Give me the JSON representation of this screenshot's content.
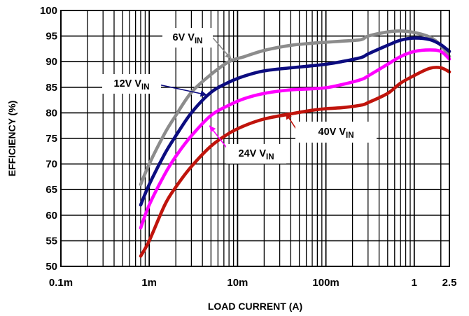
{
  "chart_data": {
    "type": "line",
    "title": "",
    "xlabel": "LOAD CURRENT (A)",
    "ylabel": "EFFICIENCY (%)",
    "xscale": "log",
    "xlim": [
      0.0001,
      2.5
    ],
    "ylim": [
      50,
      100
    ],
    "grid": true,
    "x_ticks": [
      {
        "value": 0.0001,
        "label": "0.1m"
      },
      {
        "value": 0.001,
        "label": "1m"
      },
      {
        "value": 0.01,
        "label": "10m"
      },
      {
        "value": 0.1,
        "label": "100m"
      },
      {
        "value": 1,
        "label": "1"
      },
      {
        "value": 2.5,
        "label": "2.5"
      }
    ],
    "y_ticks": [
      50,
      55,
      60,
      65,
      70,
      75,
      80,
      85,
      90,
      95,
      100
    ],
    "series": [
      {
        "name": "6V",
        "name_sub": "IN",
        "color": "#8c8c8c",
        "x": [
          0.0008,
          0.001,
          0.0015,
          0.002,
          0.003,
          0.005,
          0.008,
          0.012,
          0.02,
          0.04,
          0.07,
          0.1,
          0.15,
          0.25,
          0.3,
          0.5,
          0.7,
          1.0,
          1.5,
          2.0,
          2.5
        ],
        "y": [
          66,
          70,
          76,
          79.5,
          84,
          87.5,
          90,
          91,
          92.2,
          93.2,
          93.6,
          93.8,
          94,
          94.3,
          95,
          95.8,
          96,
          95.7,
          94.8,
          93.2,
          91
        ]
      },
      {
        "name": "12V",
        "name_sub": "IN",
        "color": "#0c0c80",
        "x": [
          0.0008,
          0.001,
          0.0015,
          0.002,
          0.003,
          0.005,
          0.008,
          0.012,
          0.02,
          0.04,
          0.07,
          0.1,
          0.15,
          0.25,
          0.3,
          0.5,
          0.7,
          1.0,
          1.5,
          2.0,
          2.5
        ],
        "y": [
          62,
          66,
          72,
          75.5,
          80,
          84,
          86,
          87.2,
          88.2,
          88.8,
          89.2,
          89.5,
          90,
          90.8,
          91.5,
          93.2,
          94.2,
          94.6,
          94.3,
          93.3,
          92
        ]
      },
      {
        "name": "24V",
        "name_sub": "IN",
        "color": "#ff00ff",
        "x": [
          0.0008,
          0.001,
          0.0015,
          0.002,
          0.003,
          0.005,
          0.008,
          0.012,
          0.02,
          0.04,
          0.07,
          0.1,
          0.15,
          0.25,
          0.3,
          0.5,
          0.7,
          1.0,
          1.5,
          2.0,
          2.5
        ],
        "y": [
          57.5,
          62,
          68,
          71.5,
          75.5,
          79.5,
          81.5,
          82.8,
          83.8,
          84.5,
          84.7,
          84.9,
          85.5,
          86.5,
          87.2,
          89.5,
          91,
          92,
          92.3,
          92,
          90.5
        ]
      },
      {
        "name": "40V",
        "name_sub": "IN",
        "color": "#c0140c",
        "x": [
          0.0008,
          0.001,
          0.0015,
          0.002,
          0.003,
          0.005,
          0.008,
          0.012,
          0.02,
          0.04,
          0.07,
          0.1,
          0.15,
          0.25,
          0.3,
          0.5,
          0.7,
          1.0,
          1.5,
          2.0,
          2.5
        ],
        "y": [
          52,
          55,
          62,
          65.5,
          69.5,
          73.5,
          76,
          77.5,
          78.8,
          79.8,
          80.5,
          80.8,
          81,
          81.5,
          82,
          83.8,
          85.8,
          87.3,
          88.7,
          88.8,
          88
        ]
      }
    ],
    "annotations": [
      {
        "series": "6V",
        "text": "6V",
        "sub": "IN"
      },
      {
        "series": "12V",
        "text": "12V",
        "sub": "IN"
      },
      {
        "series": "24V",
        "text": "24V",
        "sub": "IN"
      },
      {
        "series": "40V",
        "text": "40V",
        "sub": "IN"
      }
    ]
  }
}
